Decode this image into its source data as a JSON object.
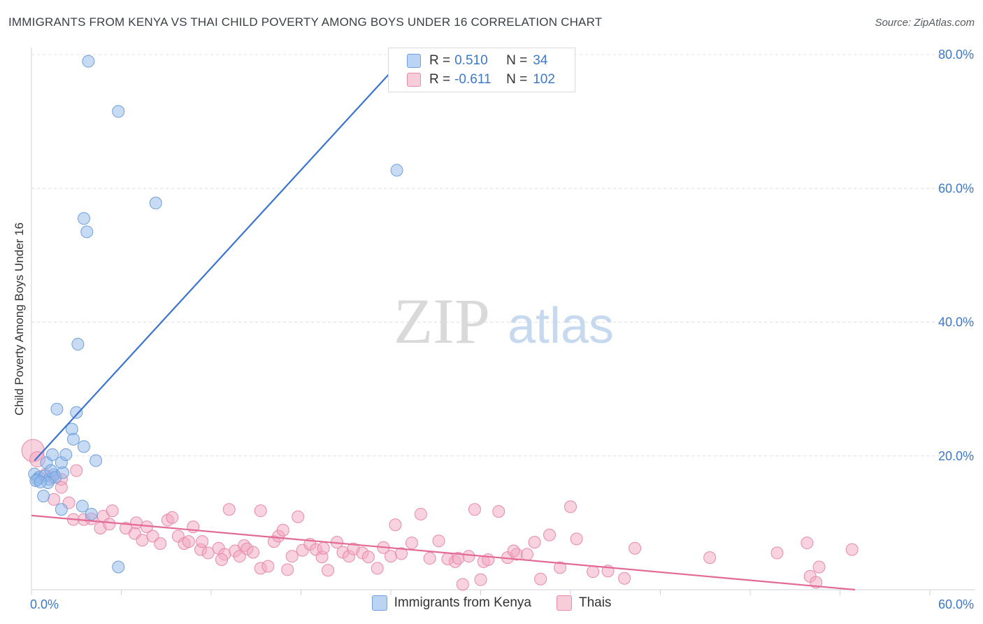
{
  "title": "IMMIGRANTS FROM KENYA VS THAI CHILD POVERTY AMONG BOYS UNDER 16 CORRELATION CHART",
  "source": "Source: ZipAtlas.com",
  "watermark": {
    "zip": "ZIP",
    "atlas": "atlas"
  },
  "legend": {
    "rows": [
      {
        "r_label": "R =",
        "r_value": "0.510",
        "n_label": "N =",
        "n_value": "34",
        "color": "#8fb8ea"
      },
      {
        "r_label": "R =",
        "r_value": "-0.611",
        "n_label": "N =",
        "n_value": "102",
        "color": "#f2a6bf"
      }
    ]
  },
  "bottom_legend": [
    "Immigrants from Kenya",
    "Thais"
  ],
  "chart_data": {
    "type": "scatter",
    "title": "IMMIGRANTS FROM KENYA VS THAI CHILD POVERTY AMONG BOYS UNDER 16 CORRELATION CHART",
    "xlabel": "",
    "ylabel": "Child Poverty Among Boys Under 16",
    "xlim": [
      0,
      60
    ],
    "ylim": [
      0,
      80
    ],
    "x_ticks": [
      0,
      6,
      12,
      18,
      24,
      30,
      36,
      42,
      48,
      54,
      60
    ],
    "x_tick_labels": {
      "0": "0.0%",
      "60": "60.0%"
    },
    "y_ticks": [
      20,
      40,
      60,
      80
    ],
    "y_tick_labels": [
      "20.0%",
      "40.0%",
      "60.0%",
      "80.0%"
    ],
    "grid": true,
    "legend_position": "top-center",
    "series": [
      {
        "name": "Immigrants from Kenya",
        "color": "#8fb8ea",
        "stroke": "#6f9fdc",
        "trend_color": "#3a74d0",
        "trend": {
          "x": [
            0.2,
            24.5
          ],
          "y": [
            19.3,
            78.6
          ]
        },
        "points": [
          [
            0.2,
            17.3
          ],
          [
            0.5,
            16.8
          ],
          [
            0.4,
            16.5
          ],
          [
            1.0,
            19.0
          ],
          [
            0.9,
            17.0
          ],
          [
            1.2,
            16.5
          ],
          [
            1.5,
            17.2
          ],
          [
            1.3,
            17.8
          ],
          [
            0.8,
            14.0
          ],
          [
            1.6,
            16.8
          ],
          [
            2.1,
            17.5
          ],
          [
            1.4,
            20.2
          ],
          [
            2.0,
            19.0
          ],
          [
            2.3,
            20.2
          ],
          [
            2.7,
            24.0
          ],
          [
            3.0,
            26.5
          ],
          [
            3.5,
            21.4
          ],
          [
            2.8,
            22.5
          ],
          [
            4.3,
            19.3
          ],
          [
            1.7,
            27.0
          ],
          [
            3.1,
            36.7
          ],
          [
            3.7,
            53.5
          ],
          [
            3.5,
            55.5
          ],
          [
            5.8,
            71.5
          ],
          [
            8.3,
            57.8
          ],
          [
            3.8,
            79.0
          ],
          [
            24.4,
            62.7
          ],
          [
            2.0,
            12.0
          ],
          [
            3.4,
            12.5
          ],
          [
            4.0,
            11.3
          ],
          [
            5.8,
            3.4
          ],
          [
            0.3,
            16.3
          ],
          [
            1.1,
            16.0
          ],
          [
            0.6,
            16.1
          ]
        ]
      },
      {
        "name": "Thais",
        "color": "#f2a6bf",
        "stroke": "#e88aa9",
        "trend_color": "#e26a95",
        "trend": {
          "x": [
            0,
            55
          ],
          "y": [
            11.1,
            0.0
          ]
        },
        "points": [
          [
            0.1,
            20.8
          ],
          [
            0.4,
            19.5
          ],
          [
            0.9,
            17.2
          ],
          [
            1.4,
            16.8
          ],
          [
            2.0,
            16.5
          ],
          [
            2.0,
            15.3
          ],
          [
            1.5,
            13.5
          ],
          [
            2.5,
            13.0
          ],
          [
            3.0,
            17.8
          ],
          [
            2.8,
            10.5
          ],
          [
            3.5,
            10.5
          ],
          [
            4.0,
            10.6
          ],
          [
            4.8,
            11.0
          ],
          [
            5.4,
            11.8
          ],
          [
            4.6,
            9.2
          ],
          [
            5.2,
            9.8
          ],
          [
            6.3,
            9.2
          ],
          [
            6.9,
            8.4
          ],
          [
            7.0,
            10.0
          ],
          [
            7.7,
            9.4
          ],
          [
            7.4,
            7.4
          ],
          [
            8.1,
            8.0
          ],
          [
            8.6,
            6.9
          ],
          [
            9.1,
            10.4
          ],
          [
            9.4,
            10.8
          ],
          [
            9.8,
            8.0
          ],
          [
            10.2,
            6.9
          ],
          [
            10.5,
            7.2
          ],
          [
            10.8,
            9.4
          ],
          [
            11.3,
            6.0
          ],
          [
            11.8,
            5.5
          ],
          [
            11.4,
            7.2
          ],
          [
            12.5,
            6.2
          ],
          [
            12.9,
            5.3
          ],
          [
            12.7,
            4.5
          ],
          [
            13.2,
            12.0
          ],
          [
            13.6,
            5.8
          ],
          [
            13.9,
            5.0
          ],
          [
            14.2,
            6.6
          ],
          [
            14.4,
            6.1
          ],
          [
            14.8,
            5.6
          ],
          [
            15.3,
            11.8
          ],
          [
            15.3,
            3.2
          ],
          [
            15.8,
            3.5
          ],
          [
            16.2,
            7.2
          ],
          [
            16.5,
            8.0
          ],
          [
            16.8,
            8.9
          ],
          [
            17.1,
            3.0
          ],
          [
            17.4,
            5.0
          ],
          [
            17.8,
            10.9
          ],
          [
            18.1,
            5.9
          ],
          [
            18.6,
            6.8
          ],
          [
            19.0,
            6.0
          ],
          [
            19.4,
            4.9
          ],
          [
            19.5,
            6.2
          ],
          [
            19.8,
            2.9
          ],
          [
            20.4,
            7.1
          ],
          [
            20.8,
            5.6
          ],
          [
            21.2,
            5.0
          ],
          [
            21.5,
            6.1
          ],
          [
            22.1,
            5.5
          ],
          [
            22.5,
            4.9
          ],
          [
            23.1,
            3.2
          ],
          [
            23.5,
            6.3
          ],
          [
            24.3,
            9.7
          ],
          [
            24.0,
            5.0
          ],
          [
            24.7,
            5.4
          ],
          [
            25.4,
            7.0
          ],
          [
            26.0,
            11.3
          ],
          [
            27.2,
            7.3
          ],
          [
            27.8,
            4.6
          ],
          [
            28.3,
            4.2
          ],
          [
            28.8,
            0.8
          ],
          [
            28.5,
            4.7
          ],
          [
            29.2,
            5.0
          ],
          [
            29.6,
            12.0
          ],
          [
            30.0,
            1.5
          ],
          [
            30.2,
            4.2
          ],
          [
            30.5,
            4.5
          ],
          [
            31.2,
            11.7
          ],
          [
            31.8,
            4.8
          ],
          [
            32.4,
            5.3
          ],
          [
            33.1,
            5.3
          ],
          [
            33.6,
            7.1
          ],
          [
            34.0,
            1.6
          ],
          [
            34.6,
            8.2
          ],
          [
            35.3,
            3.3
          ],
          [
            36.0,
            12.4
          ],
          [
            36.4,
            7.6
          ],
          [
            37.5,
            2.7
          ],
          [
            38.5,
            2.8
          ],
          [
            39.6,
            1.7
          ],
          [
            40.3,
            6.2
          ],
          [
            49.8,
            5.5
          ],
          [
            51.8,
            7.0
          ],
          [
            52.0,
            2.0
          ],
          [
            52.4,
            1.1
          ],
          [
            52.6,
            3.4
          ],
          [
            54.8,
            6.0
          ],
          [
            45.3,
            4.8
          ],
          [
            32.2,
            5.8
          ],
          [
            26.6,
            4.7
          ]
        ]
      }
    ]
  }
}
